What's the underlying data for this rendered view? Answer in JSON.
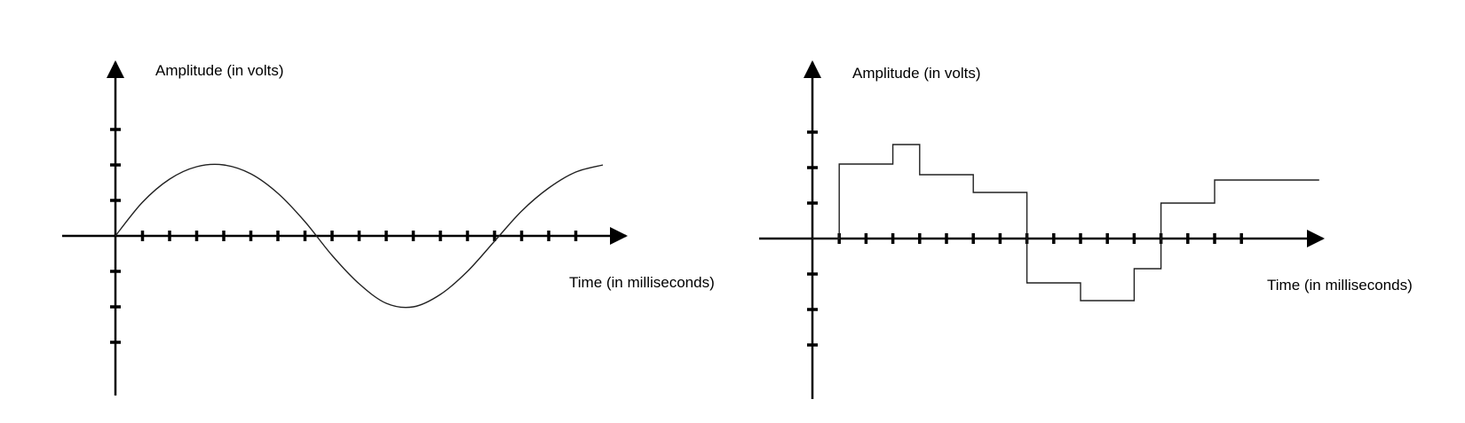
{
  "colors": {
    "stroke": "#000000",
    "background": "#ffffff",
    "signal": "#222222"
  },
  "chart_data": [
    {
      "type": "line",
      "title": "",
      "ylabel": "Amplitude (in volts)",
      "xlabel": "Time (in milliseconds)",
      "x_ticks": 17,
      "y_ticks_positive": 3,
      "y_ticks_negative": 3,
      "ylim": [
        -3,
        3
      ],
      "xlim": [
        0,
        18
      ],
      "series": [
        {
          "x": [
            0,
            1,
            2,
            3,
            4,
            5,
            6,
            7,
            8,
            9,
            10,
            11,
            12,
            13,
            14,
            15,
            16,
            17,
            18
          ],
          "values": [
            0,
            0.95,
            1.6,
            1.95,
            2.0,
            1.75,
            1.2,
            0.4,
            -0.55,
            -1.35,
            -1.9,
            -2.0,
            -1.65,
            -1.0,
            -0.15,
            0.7,
            1.35,
            1.8,
            2.0
          ]
        }
      ]
    },
    {
      "type": "line",
      "title": "",
      "ylabel": "Amplitude (in volts)",
      "xlabel": "Time (in milliseconds)",
      "x_ticks": 16,
      "y_ticks_positive": 3,
      "y_ticks_negative": 3,
      "ylim": [
        -3,
        3
      ],
      "xlim": [
        0,
        18
      ],
      "series": [
        {
          "step": true,
          "x": [
            0,
            1,
            3,
            4,
            6,
            8,
            10,
            12,
            13,
            15,
            17,
            18.9
          ],
          "values": [
            0,
            2.1,
            2.65,
            1.8,
            1.3,
            -1.25,
            -1.75,
            -0.85,
            1.0,
            1.65,
            1.65,
            1.65
          ]
        }
      ]
    }
  ]
}
